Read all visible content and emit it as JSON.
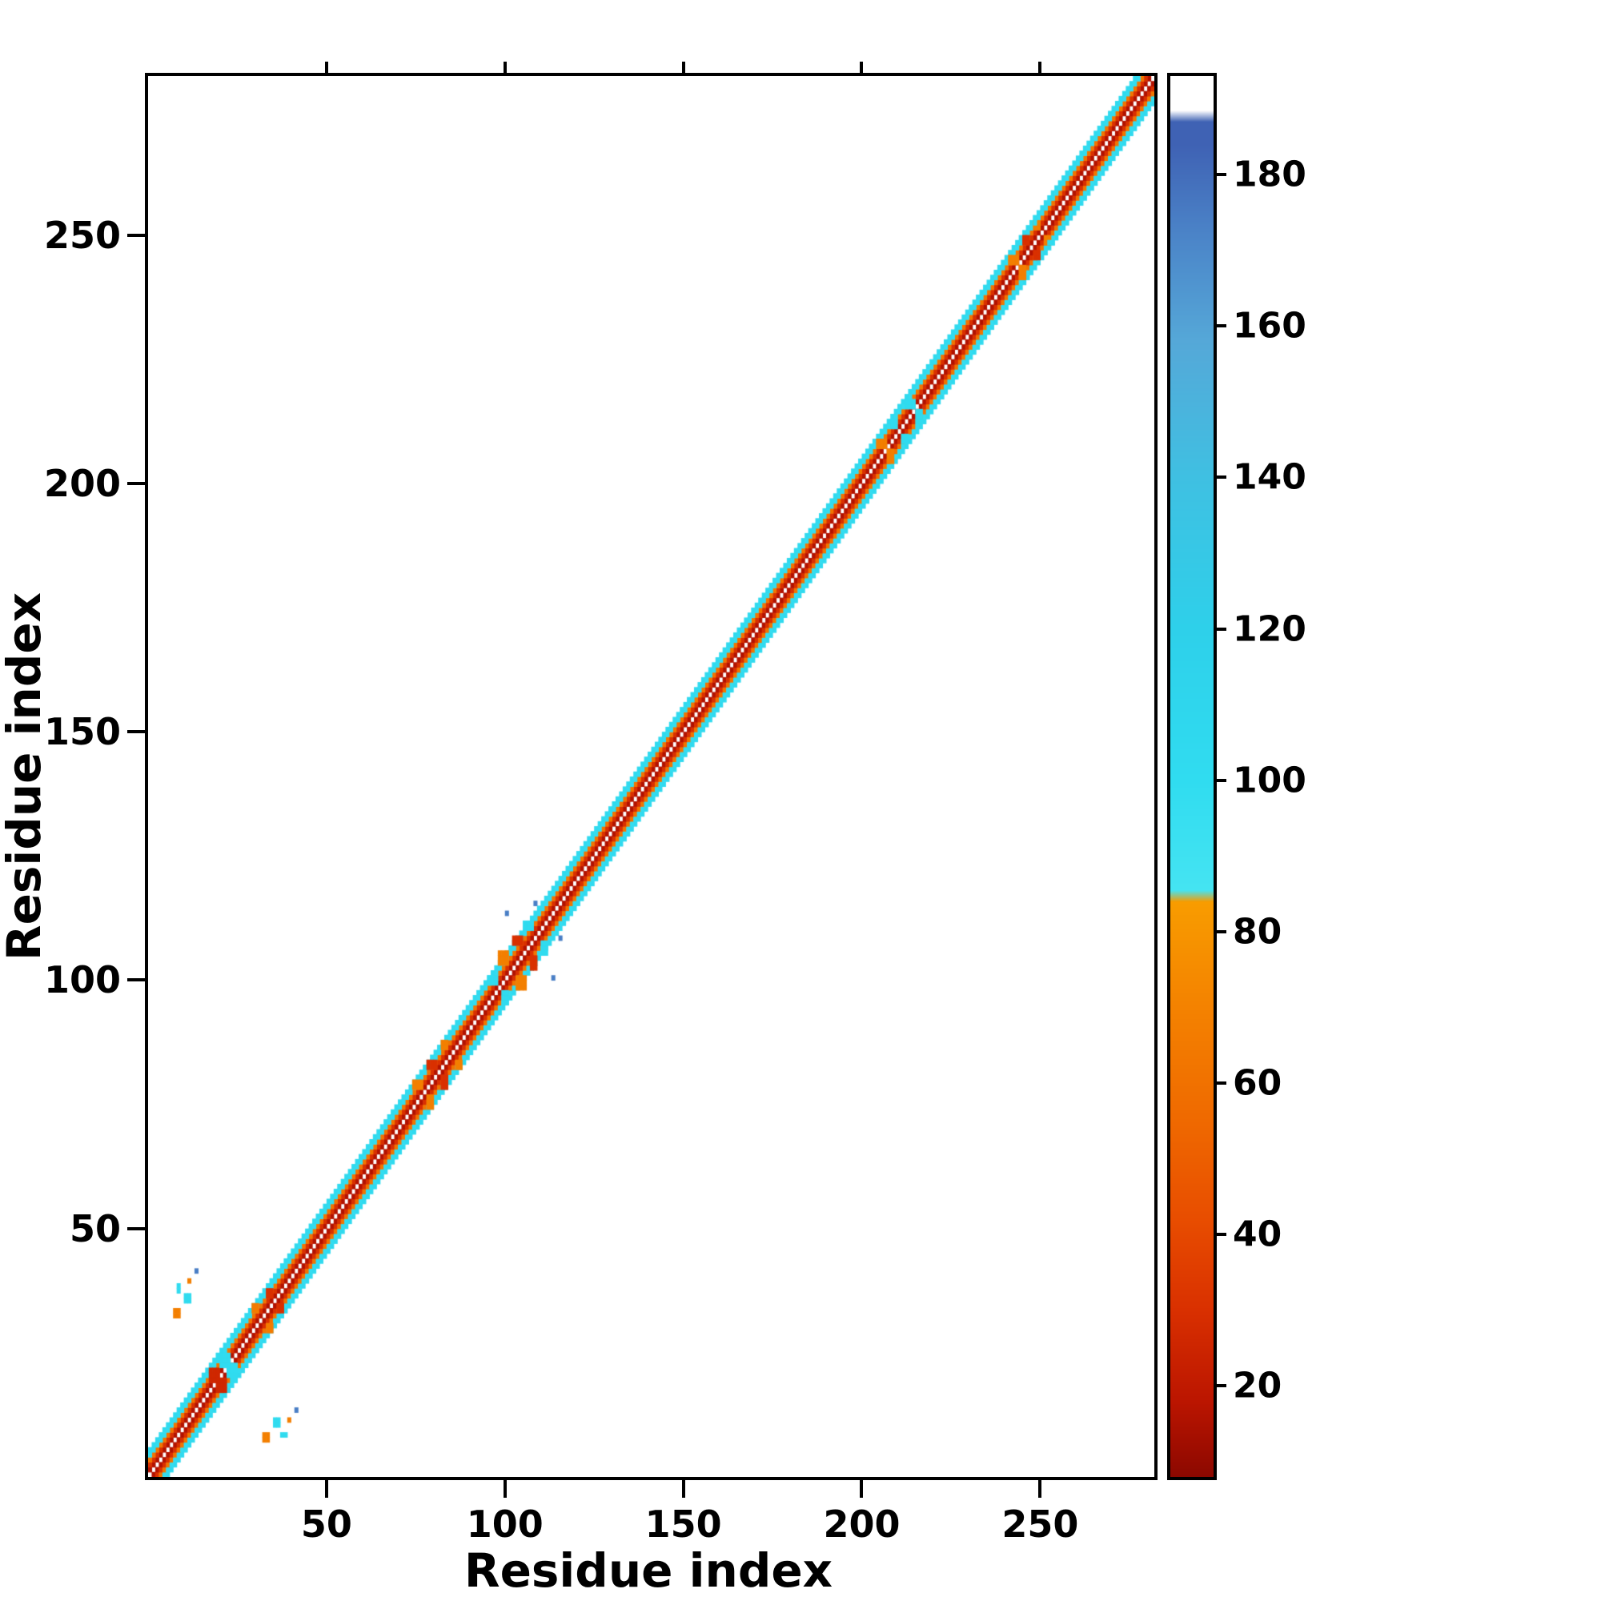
{
  "chart_data": {
    "type": "heatmap",
    "title": "",
    "xlabel": "Residue index",
    "ylabel": "Residue index",
    "n_residues": 282,
    "axis_range": [
      1,
      282
    ],
    "x_ticks": [
      50,
      100,
      150,
      200,
      250
    ],
    "y_ticks": [
      50,
      100,
      150,
      200,
      250
    ],
    "grid": false,
    "background": "#ffffff",
    "symmetric": true,
    "colorbar": {
      "position": "right",
      "ticks": [
        20,
        40,
        60,
        80,
        100,
        120,
        140,
        160,
        180
      ],
      "vmin": 8,
      "vmax": 193,
      "stops": [
        {
          "v": 8,
          "c": "#8c0800"
        },
        {
          "v": 18,
          "c": "#bb1500"
        },
        {
          "v": 30,
          "c": "#d93000"
        },
        {
          "v": 42,
          "c": "#e84d00"
        },
        {
          "v": 55,
          "c": "#ef6900"
        },
        {
          "v": 70,
          "c": "#f48200"
        },
        {
          "v": 84,
          "c": "#f89c00"
        },
        {
          "v": 85.5,
          "c": "#45e4f2"
        },
        {
          "v": 100,
          "c": "#30dcf0"
        },
        {
          "v": 120,
          "c": "#2ed0ea"
        },
        {
          "v": 140,
          "c": "#3fc0e2"
        },
        {
          "v": 158,
          "c": "#55a8d8"
        },
        {
          "v": 172,
          "c": "#4b84c8"
        },
        {
          "v": 184,
          "c": "#3f62b4"
        },
        {
          "v": 187,
          "c": "#3f62b4"
        },
        {
          "v": 188.5,
          "c": "#ffffff"
        },
        {
          "v": 193,
          "c": "#ffffff"
        }
      ]
    },
    "diagonal_band": [
      {
        "min_offset": 1,
        "max_offset": 1,
        "value": 16
      },
      {
        "min_offset": 2,
        "max_offset": 2,
        "value": 30
      },
      {
        "min_offset": 3,
        "max_offset": 3,
        "value": 62
      },
      {
        "min_offset": 4,
        "max_offset": 4,
        "value": 98
      },
      {
        "min_offset": 5,
        "max_offset": 5,
        "value": 104
      }
    ],
    "features": [
      {
        "x": 8,
        "y": 33,
        "w": 2,
        "h": 2,
        "value": 68
      },
      {
        "x": 11,
        "y": 36,
        "w": 2,
        "h": 2,
        "value": 102
      },
      {
        "x": 9,
        "y": 38,
        "w": 1,
        "h": 2,
        "value": 102
      },
      {
        "x": 12,
        "y": 40,
        "w": 1,
        "h": 1,
        "value": 68
      },
      {
        "x": 14,
        "y": 42,
        "w": 1,
        "h": 1,
        "value": 174
      },
      {
        "x": 18,
        "y": 20,
        "w": 3,
        "h": 3,
        "value": 26
      },
      {
        "x": 21,
        "y": 23,
        "w": 3,
        "h": 3,
        "value": 100
      },
      {
        "x": 24,
        "y": 20,
        "w": 2,
        "h": 2,
        "value": 102
      },
      {
        "x": 30,
        "y": 34,
        "w": 2,
        "h": 2,
        "value": 66
      },
      {
        "x": 34,
        "y": 37,
        "w": 2,
        "h": 2,
        "value": 30
      },
      {
        "x": 75,
        "y": 79,
        "w": 3,
        "h": 2,
        "value": 68
      },
      {
        "x": 79,
        "y": 83,
        "w": 3,
        "h": 2,
        "value": 30
      },
      {
        "x": 83,
        "y": 87,
        "w": 2,
        "h": 2,
        "value": 68
      },
      {
        "x": 96,
        "y": 100,
        "w": 3,
        "h": 2,
        "value": 102
      },
      {
        "x": 99,
        "y": 104,
        "w": 3,
        "h": 3,
        "value": 68
      },
      {
        "x": 103,
        "y": 108,
        "w": 3,
        "h": 2,
        "value": 30
      },
      {
        "x": 106,
        "y": 111,
        "w": 3,
        "h": 2,
        "value": 102
      },
      {
        "x": 101,
        "y": 114,
        "w": 1,
        "h": 1,
        "value": 174
      },
      {
        "x": 109,
        "y": 116,
        "w": 1,
        "h": 1,
        "value": 174
      },
      {
        "x": 205,
        "y": 208,
        "w": 3,
        "h": 2,
        "value": 68
      },
      {
        "x": 209,
        "y": 212,
        "w": 2,
        "h": 2,
        "value": 102
      },
      {
        "x": 213,
        "y": 216,
        "w": 3,
        "h": 2,
        "value": 102
      },
      {
        "x": 242,
        "y": 245,
        "w": 3,
        "h": 2,
        "value": 68
      },
      {
        "x": 246,
        "y": 249,
        "w": 2,
        "h": 2,
        "value": 30
      },
      {
        "x": 249,
        "y": 252,
        "w": 2,
        "h": 2,
        "value": 68
      },
      {
        "x": 253,
        "y": 249,
        "w": 2,
        "h": 1,
        "value": 102
      }
    ]
  }
}
